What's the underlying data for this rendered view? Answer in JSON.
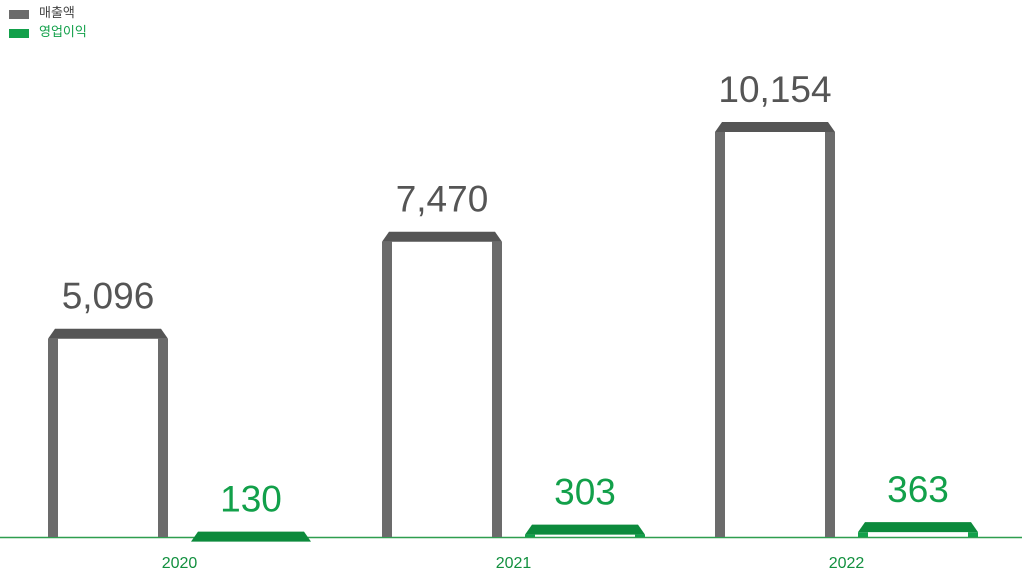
{
  "chart_data": {
    "type": "bar",
    "categories": [
      "2020",
      "2021",
      "2022"
    ],
    "series": [
      {
        "name": "매출액",
        "values": [
          5096,
          7470,
          10154
        ],
        "labels": [
          "5,096",
          "7,470",
          "10,154"
        ],
        "color": "#6b6b6b",
        "topColor": "#555555"
      },
      {
        "name": "영업이익",
        "values": [
          130,
          303,
          363
        ],
        "labels": [
          "130",
          "303",
          "363"
        ],
        "color": "#12a04a",
        "topColor": "#0c8a3c"
      }
    ],
    "legend_position": "top-left",
    "grid": false,
    "baseline_color": "#2e9e4f",
    "category_label_color": "#12903f"
  }
}
